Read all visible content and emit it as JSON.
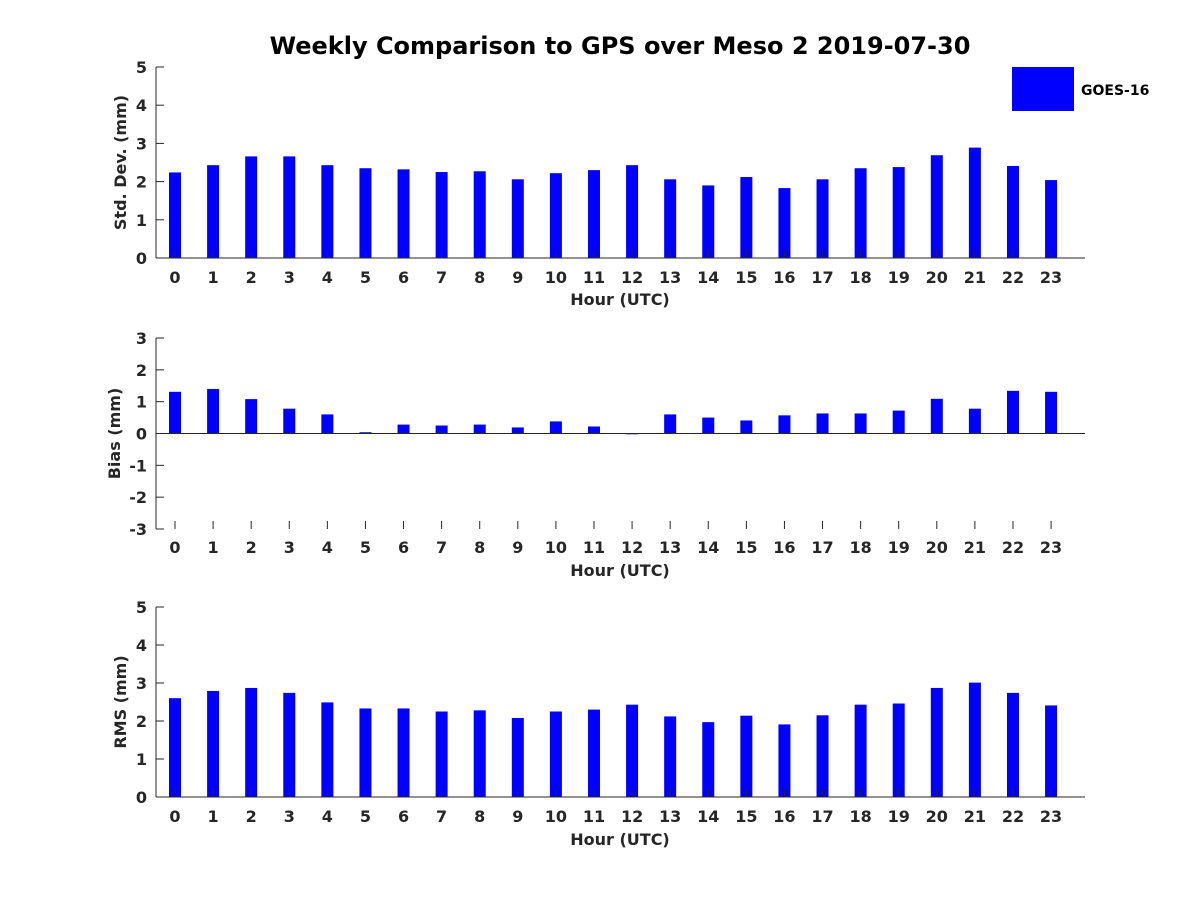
{
  "title": "Weekly Comparison to GPS over Meso 2 2019-07-30",
  "legend": {
    "label": "GOES-16",
    "color": "#0000ff"
  },
  "chart_data": [
    {
      "type": "bar",
      "name": "std-dev",
      "xlabel": "Hour (UTC)",
      "ylabel": "Std. Dev. (mm)",
      "ylim": [
        0,
        5
      ],
      "yticks": [
        0,
        1,
        2,
        3,
        4,
        5
      ],
      "categories": [
        "0",
        "1",
        "2",
        "3",
        "4",
        "5",
        "6",
        "7",
        "8",
        "9",
        "10",
        "11",
        "12",
        "13",
        "14",
        "15",
        "16",
        "17",
        "18",
        "19",
        "20",
        "21",
        "22",
        "23"
      ],
      "series": [
        {
          "name": "GOES-16",
          "values": [
            2.24,
            2.43,
            2.66,
            2.66,
            2.43,
            2.35,
            2.32,
            2.25,
            2.27,
            2.06,
            2.22,
            2.3,
            2.43,
            2.06,
            1.9,
            2.12,
            1.83,
            2.06,
            2.35,
            2.38,
            2.69,
            2.89,
            2.41,
            2.04
          ]
        }
      ]
    },
    {
      "type": "bar",
      "name": "bias",
      "xlabel": "Hour (UTC)",
      "ylabel": "Bias (mm)",
      "ylim": [
        -3,
        3
      ],
      "yticks": [
        3,
        2,
        1,
        0,
        -1,
        -2,
        -3
      ],
      "categories": [
        "0",
        "1",
        "2",
        "3",
        "4",
        "5",
        "6",
        "7",
        "8",
        "9",
        "10",
        "11",
        "12",
        "13",
        "14",
        "15",
        "16",
        "17",
        "18",
        "19",
        "20",
        "21",
        "22",
        "23"
      ],
      "series": [
        {
          "name": "GOES-16",
          "values": [
            1.31,
            1.4,
            1.08,
            0.78,
            0.6,
            0.04,
            0.28,
            0.25,
            0.28,
            0.19,
            0.38,
            0.22,
            0.0,
            0.6,
            0.5,
            0.41,
            0.57,
            0.63,
            0.63,
            0.72,
            1.09,
            0.78,
            1.34,
            1.31
          ]
        }
      ]
    },
    {
      "type": "bar",
      "name": "rms",
      "xlabel": "Hour (UTC)",
      "ylabel": "RMS (mm)",
      "ylim": [
        0,
        5
      ],
      "yticks": [
        0,
        1,
        2,
        3,
        4,
        5
      ],
      "categories": [
        "0",
        "1",
        "2",
        "3",
        "4",
        "5",
        "6",
        "7",
        "8",
        "9",
        "10",
        "11",
        "12",
        "13",
        "14",
        "15",
        "16",
        "17",
        "18",
        "19",
        "20",
        "21",
        "22",
        "23"
      ],
      "series": [
        {
          "name": "GOES-16",
          "values": [
            2.6,
            2.79,
            2.87,
            2.74,
            2.49,
            2.33,
            2.33,
            2.25,
            2.28,
            2.08,
            2.25,
            2.3,
            2.43,
            2.12,
            1.97,
            2.14,
            1.91,
            2.15,
            2.43,
            2.46,
            2.87,
            3.01,
            2.74,
            2.41
          ]
        }
      ]
    }
  ]
}
